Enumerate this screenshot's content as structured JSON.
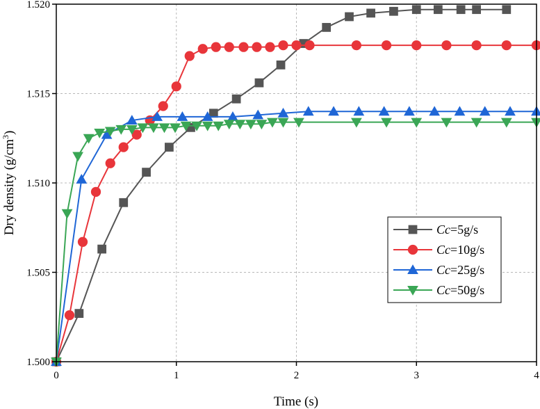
{
  "chart_data": {
    "type": "line",
    "xlabel": "Time (s)",
    "ylabel": "Dry density (g/cm",
    "ylabel_sup": "3",
    "ylabel_tail": ")",
    "xlim": [
      0,
      4
    ],
    "ylim": [
      1.5,
      1.52
    ],
    "xticks": [
      "0",
      "1",
      "2",
      "3",
      "4"
    ],
    "yticks": [
      "1.500",
      "1.505",
      "1.510",
      "1.515",
      "1.520"
    ],
    "grid": true,
    "legend_position": "right",
    "series": [
      {
        "name": "5g/s",
        "name_prefix": "Cc",
        "name_suffix": "=5g/s",
        "color": "#555555",
        "marker": "square",
        "x": [
          0,
          0.19,
          0.38,
          0.56,
          0.75,
          0.94,
          1.12,
          1.31,
          1.5,
          1.69,
          1.87,
          2.06,
          2.25,
          2.44,
          2.62,
          2.81,
          3.0,
          3.18,
          3.37,
          3.5,
          3.75
        ],
        "values": [
          1.5,
          1.5027,
          1.5063,
          1.5089,
          1.5106,
          1.512,
          1.5131,
          1.5139,
          1.5147,
          1.5156,
          1.5166,
          1.5178,
          1.5187,
          1.5193,
          1.5195,
          1.5196,
          1.5197,
          1.5197,
          1.5197,
          1.5197,
          1.5197
        ]
      },
      {
        "name": "10g/s",
        "name_prefix": "Cc",
        "name_suffix": "=10g/s",
        "color": "#e8353a",
        "marker": "circle",
        "x": [
          0,
          0.11,
          0.22,
          0.33,
          0.45,
          0.56,
          0.67,
          0.78,
          0.89,
          1.0,
          1.11,
          1.22,
          1.33,
          1.44,
          1.56,
          1.67,
          1.78,
          1.89,
          2.0,
          2.11,
          2.5,
          2.75,
          3.0,
          3.25,
          3.5,
          3.75,
          4.0
        ],
        "values": [
          1.5,
          1.5026,
          1.5067,
          1.5095,
          1.5111,
          1.512,
          1.5127,
          1.5135,
          1.5143,
          1.5154,
          1.5171,
          1.5175,
          1.5176,
          1.5176,
          1.5176,
          1.5176,
          1.5176,
          1.5177,
          1.5177,
          1.5177,
          1.5177,
          1.5177,
          1.5177,
          1.5177,
          1.5177,
          1.5177,
          1.5177
        ]
      },
      {
        "name": "25g/s",
        "name_prefix": "Cc",
        "name_suffix": "=25g/s",
        "color": "#1f66d6",
        "marker": "triangle-up",
        "x": [
          0,
          0.21,
          0.42,
          0.63,
          0.84,
          1.05,
          1.26,
          1.47,
          1.68,
          1.89,
          2.1,
          2.31,
          2.52,
          2.73,
          2.94,
          3.15,
          3.36,
          3.57,
          3.78,
          4.0
        ],
        "values": [
          1.5,
          1.5102,
          1.5127,
          1.5135,
          1.5137,
          1.5137,
          1.5137,
          1.5137,
          1.5138,
          1.5139,
          1.514,
          1.514,
          1.514,
          1.514,
          1.514,
          1.514,
          1.514,
          1.514,
          1.514,
          1.514
        ]
      },
      {
        "name": "50g/s",
        "name_prefix": "Cc",
        "name_suffix": "=50g/s",
        "color": "#3aa655",
        "marker": "triangle-down",
        "x": [
          0,
          0.09,
          0.18,
          0.27,
          0.36,
          0.45,
          0.54,
          0.63,
          0.72,
          0.81,
          0.9,
          0.99,
          1.08,
          1.17,
          1.26,
          1.35,
          1.44,
          1.53,
          1.62,
          1.71,
          1.8,
          1.89,
          2.02,
          2.5,
          2.75,
          3.0,
          3.25,
          3.5,
          3.75,
          4.0
        ],
        "values": [
          1.5,
          1.5083,
          1.5115,
          1.5125,
          1.5128,
          1.5129,
          1.513,
          1.513,
          1.5131,
          1.5131,
          1.5131,
          1.5131,
          1.5132,
          1.5132,
          1.5132,
          1.5132,
          1.5133,
          1.5133,
          1.5133,
          1.5133,
          1.5134,
          1.5134,
          1.5134,
          1.5134,
          1.5134,
          1.5134,
          1.5134,
          1.5134,
          1.5134,
          1.5134
        ]
      }
    ]
  }
}
